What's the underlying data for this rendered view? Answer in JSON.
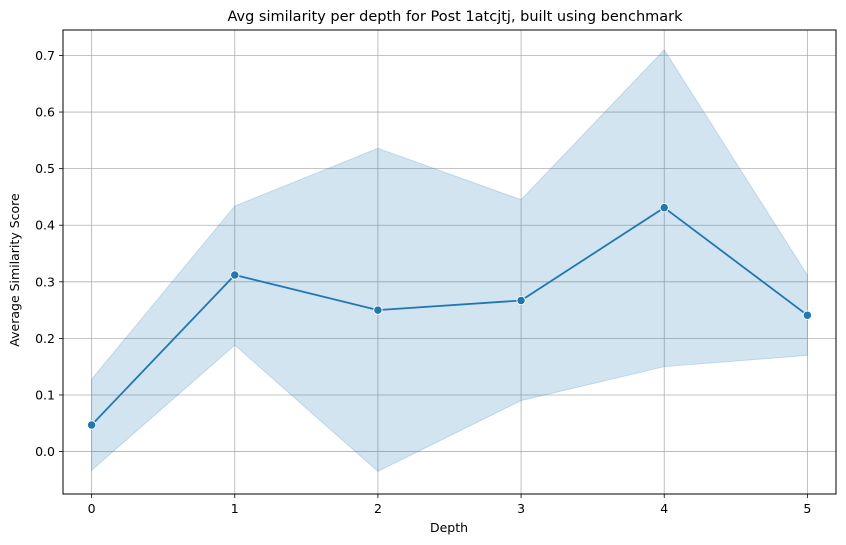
{
  "chart_data": {
    "type": "line",
    "title": "Avg similarity per depth for Post 1atcjtj, built using benchmark",
    "xlabel": "Depth",
    "ylabel": "Average Similarity Score",
    "x": [
      0,
      1,
      2,
      3,
      4,
      5
    ],
    "series": [
      {
        "values": [
          0.047,
          0.312,
          0.25,
          0.267,
          0.431,
          0.241
        ],
        "ci_lower": [
          -0.033,
          0.188,
          -0.035,
          0.09,
          0.15,
          0.17
        ],
        "ci_upper": [
          0.128,
          0.434,
          0.536,
          0.445,
          0.71,
          0.312
        ],
        "color": "#1f77b4",
        "band_color": "#1f77b4",
        "marker": "circle"
      }
    ],
    "xlim": [
      -0.2,
      5.2
    ],
    "ylim": [
      -0.075,
      0.745
    ],
    "xticks": [
      0,
      1,
      2,
      3,
      4,
      5
    ],
    "yticks": [
      0.0,
      0.1,
      0.2,
      0.3,
      0.4,
      0.5,
      0.6,
      0.7
    ],
    "ytick_labels": [
      "0.0",
      "0.1",
      "0.2",
      "0.3",
      "0.4",
      "0.5",
      "0.6",
      "0.7"
    ],
    "grid": true,
    "grid_color": "#b0b0b0"
  }
}
